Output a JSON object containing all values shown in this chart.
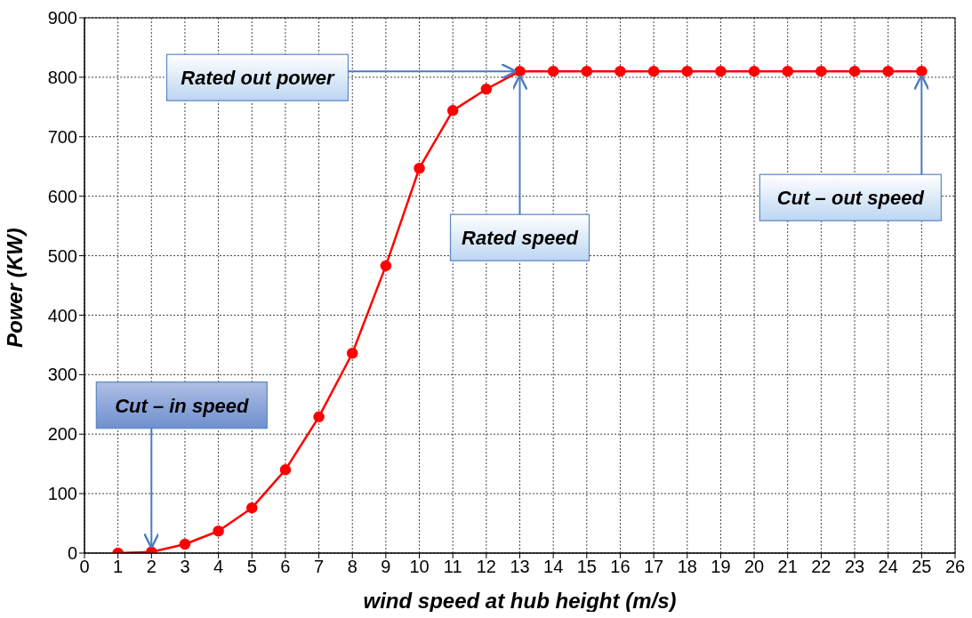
{
  "chart_data": {
    "type": "line",
    "xlabel": "wind speed at hub height (m/s)",
    "ylabel": "Power (KW)",
    "x": [
      1,
      2,
      3,
      4,
      5,
      6,
      7,
      8,
      9,
      10,
      11,
      12,
      13,
      14,
      15,
      16,
      17,
      18,
      19,
      20,
      21,
      22,
      23,
      24,
      25
    ],
    "series": [
      {
        "color": "#ff0000",
        "values": [
          0,
          2,
          15,
          37,
          76,
          140,
          229,
          336,
          483,
          647,
          744,
          780,
          810,
          810,
          810,
          810,
          810,
          810,
          810,
          810,
          810,
          810,
          810,
          810,
          810
        ]
      }
    ],
    "xlim": [
      0,
      26
    ],
    "xticks": [
      0,
      1,
      2,
      3,
      4,
      5,
      6,
      7,
      8,
      9,
      10,
      11,
      12,
      13,
      14,
      15,
      16,
      17,
      18,
      19,
      20,
      21,
      22,
      23,
      24,
      25,
      26
    ],
    "ylim": [
      0,
      900
    ],
    "yticks": [
      0,
      100,
      200,
      300,
      400,
      500,
      600,
      700,
      800,
      900
    ],
    "grid": true,
    "marker": "circle",
    "line_style": "solid",
    "annotations": [
      {
        "text": "Rated out power",
        "x": 13,
        "y": 810
      },
      {
        "text": "Rated speed",
        "x": 13,
        "y": 810
      },
      {
        "text": "Cut – out speed",
        "x": 25,
        "y": 810
      },
      {
        "text": "Cut – in speed",
        "x": 2,
        "y": 2
      }
    ]
  }
}
